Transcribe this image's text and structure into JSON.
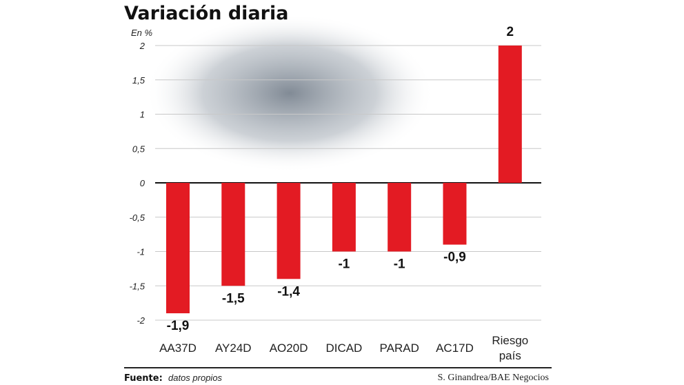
{
  "chart_data": {
    "type": "bar",
    "title": "Variación diaria",
    "ylabel": "En %",
    "categories": [
      "AA37D",
      "AY24D",
      "AO20D",
      "DICAD",
      "PARAD",
      "AC17D",
      "Riesgo país"
    ],
    "values": [
      -1.9,
      -1.5,
      -1.4,
      -1,
      -1,
      -0.9,
      2
    ],
    "data_labels": [
      "-1,9",
      "-1,5",
      "-1,4",
      "-1",
      "-1",
      "-0,9",
      "2"
    ],
    "ylim": [
      -2,
      2
    ],
    "yticks": [
      2,
      1.5,
      1,
      0.5,
      0,
      -0.5,
      -1,
      -1.5,
      -2
    ],
    "ytick_labels": [
      "2",
      "1,5",
      "1",
      "0,5",
      "0",
      "-0,5",
      "-1",
      "-1,5",
      "-2"
    ],
    "grid": true,
    "bar_color": "#e31b23"
  },
  "footer": {
    "source_label": "Fuente:",
    "source_value": "datos propios",
    "credit": "S. Ginandrea/BAE Negocios"
  }
}
